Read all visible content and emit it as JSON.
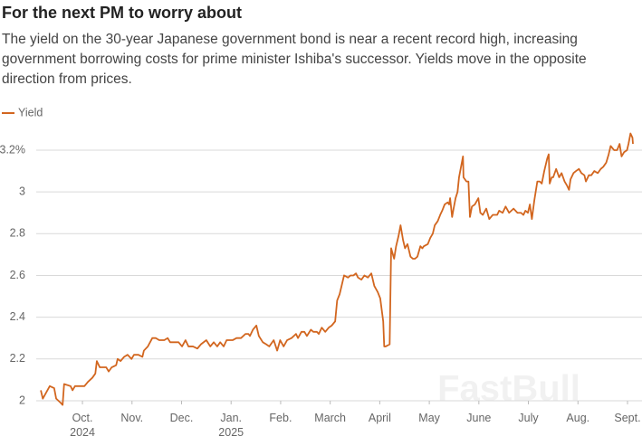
{
  "chart_data": {
    "type": "line",
    "title": "For the next PM to worry about",
    "subtitle": "The yield on the 30-year Japanese government bond is near a recent record high, increasing government borrowing costs for prime minister Ishiba's successor. Yields move in the opposite direction from prices.",
    "watermark": "FastBull",
    "x": [
      9.16,
      9.2,
      9.34,
      9.43,
      9.47,
      9.56,
      9.6,
      9.63,
      9.76,
      9.8,
      9.85,
      10.04,
      10.11,
      10.2,
      10.26,
      10.29,
      10.35,
      10.48,
      10.53,
      10.59,
      10.68,
      10.71,
      10.77,
      10.84,
      10.91,
      10.99,
      11.04,
      11.13,
      11.21,
      11.24,
      11.32,
      11.41,
      11.48,
      11.55,
      11.65,
      11.72,
      11.77,
      11.86,
      11.94,
      12.01,
      12.08,
      12.14,
      12.23,
      12.32,
      12.39,
      12.5,
      12.58,
      12.65,
      12.72,
      12.78,
      12.85,
      12.91,
      13.03,
      13.11,
      13.2,
      13.29,
      13.35,
      13.38,
      13.44,
      13.51,
      13.56,
      13.64,
      13.71,
      13.77,
      13.86,
      13.93,
      13.99,
      14.06,
      14.13,
      14.22,
      14.31,
      14.35,
      14.42,
      14.48,
      14.53,
      14.61,
      14.66,
      14.73,
      14.77,
      14.83,
      14.9,
      14.97,
      15.03,
      15.1,
      15.14,
      15.19,
      15.23,
      15.28,
      15.36,
      15.41,
      15.47,
      15.52,
      15.56,
      15.63,
      15.69,
      15.76,
      15.83,
      15.89,
      15.96,
      16.01,
      16.07,
      16.09,
      16.12,
      16.2,
      16.23,
      16.29,
      16.33,
      16.38,
      16.42,
      16.47,
      16.51,
      16.56,
      16.62,
      16.67,
      16.71,
      16.76,
      16.82,
      16.86,
      16.89,
      16.97,
      17.02,
      17.07,
      17.11,
      17.17,
      17.22,
      17.26,
      17.31,
      17.37,
      17.4,
      17.42,
      17.46,
      17.49,
      17.53,
      17.57,
      17.6,
      17.64,
      17.68,
      17.69,
      17.75,
      17.79,
      17.82,
      17.86,
      17.92,
      17.99,
      18.03,
      18.08,
      18.15,
      18.21,
      18.28,
      18.37,
      18.41,
      18.48,
      18.54,
      18.61,
      18.7,
      18.78,
      18.85,
      18.9,
      18.94,
      18.99,
      19.03,
      19.07,
      19.12,
      19.18,
      19.23,
      19.27,
      19.32,
      19.38,
      19.41,
      19.43,
      19.47,
      19.5,
      19.56,
      19.62,
      19.67,
      19.73,
      19.78,
      19.82,
      19.85,
      19.91,
      19.96,
      20.02,
      20.07,
      20.13,
      20.16,
      20.22,
      20.27,
      20.33,
      20.4,
      20.46,
      20.51,
      20.57,
      20.62,
      20.66,
      20.73,
      20.79,
      20.84,
      20.88,
      20.93,
      20.99,
      21.02,
      21.06,
      21.1,
      21.11
    ],
    "series": [
      {
        "name": "Yield",
        "color": "#d2661f",
        "values": [
          2.05,
          2.01,
          2.07,
          2.06,
          2.01,
          1.99,
          1.98,
          2.08,
          2.07,
          2.05,
          2.07,
          2.07,
          2.09,
          2.11,
          2.13,
          2.19,
          2.16,
          2.16,
          2.14,
          2.16,
          2.17,
          2.2,
          2.19,
          2.21,
          2.22,
          2.2,
          2.22,
          2.22,
          2.21,
          2.24,
          2.26,
          2.3,
          2.3,
          2.29,
          2.29,
          2.3,
          2.28,
          2.28,
          2.28,
          2.26,
          2.29,
          2.26,
          2.26,
          2.25,
          2.27,
          2.29,
          2.26,
          2.28,
          2.26,
          2.28,
          2.26,
          2.29,
          2.29,
          2.3,
          2.3,
          2.32,
          2.32,
          2.31,
          2.34,
          2.36,
          2.31,
          2.28,
          2.27,
          2.26,
          2.29,
          2.24,
          2.29,
          2.26,
          2.29,
          2.3,
          2.32,
          2.3,
          2.33,
          2.33,
          2.31,
          2.34,
          2.33,
          2.33,
          2.32,
          2.35,
          2.33,
          2.35,
          2.36,
          2.38,
          2.48,
          2.51,
          2.55,
          2.6,
          2.59,
          2.6,
          2.6,
          2.61,
          2.59,
          2.58,
          2.6,
          2.59,
          2.61,
          2.55,
          2.52,
          2.49,
          2.38,
          2.26,
          2.26,
          2.27,
          2.73,
          2.68,
          2.74,
          2.79,
          2.84,
          2.77,
          2.73,
          2.75,
          2.69,
          2.68,
          2.68,
          2.69,
          2.74,
          2.73,
          2.74,
          2.75,
          2.78,
          2.8,
          2.84,
          2.86,
          2.89,
          2.91,
          2.94,
          2.95,
          2.94,
          2.97,
          2.88,
          2.92,
          2.97,
          3.0,
          3.07,
          3.12,
          3.17,
          3.07,
          3.05,
          3.05,
          2.88,
          2.93,
          2.94,
          2.97,
          2.9,
          2.89,
          2.92,
          2.87,
          2.89,
          2.89,
          2.91,
          2.9,
          2.93,
          2.9,
          2.92,
          2.9,
          2.9,
          2.89,
          2.91,
          2.9,
          2.94,
          2.87,
          2.96,
          3.05,
          3.05,
          3.04,
          3.1,
          3.16,
          3.18,
          3.04,
          3.07,
          3.07,
          3.11,
          3.07,
          3.09,
          3.05,
          3.03,
          3.01,
          3.06,
          3.09,
          3.1,
          3.11,
          3.09,
          3.08,
          3.05,
          3.08,
          3.08,
          3.1,
          3.09,
          3.11,
          3.12,
          3.14,
          3.18,
          3.22,
          3.2,
          3.2,
          3.23,
          3.17,
          3.19,
          3.2,
          3.23,
          3.28,
          3.26,
          3.23
        ]
      }
    ],
    "xlim": [
      9.1,
      21.15
    ],
    "xticks": [
      {
        "value": 10,
        "label": "Oct.\n2024"
      },
      {
        "value": 11,
        "label": "Nov."
      },
      {
        "value": 12,
        "label": "Dec."
      },
      {
        "value": 13,
        "label": "Jan.\n2025"
      },
      {
        "value": 14,
        "label": "Feb."
      },
      {
        "value": 15,
        "label": "March"
      },
      {
        "value": 16,
        "label": "April"
      },
      {
        "value": 17,
        "label": "May"
      },
      {
        "value": 18,
        "label": "June"
      },
      {
        "value": 19,
        "label": "July"
      },
      {
        "value": 20,
        "label": "Aug."
      },
      {
        "value": 21,
        "label": "Sept."
      }
    ],
    "ylim": [
      1.95,
      3.3
    ],
    "yticks": [
      2,
      2.2,
      2.4,
      2.6,
      2.8,
      3,
      {
        "value": 3.2,
        "label": "3.2%"
      }
    ],
    "grid": true,
    "legend": "top-left"
  }
}
